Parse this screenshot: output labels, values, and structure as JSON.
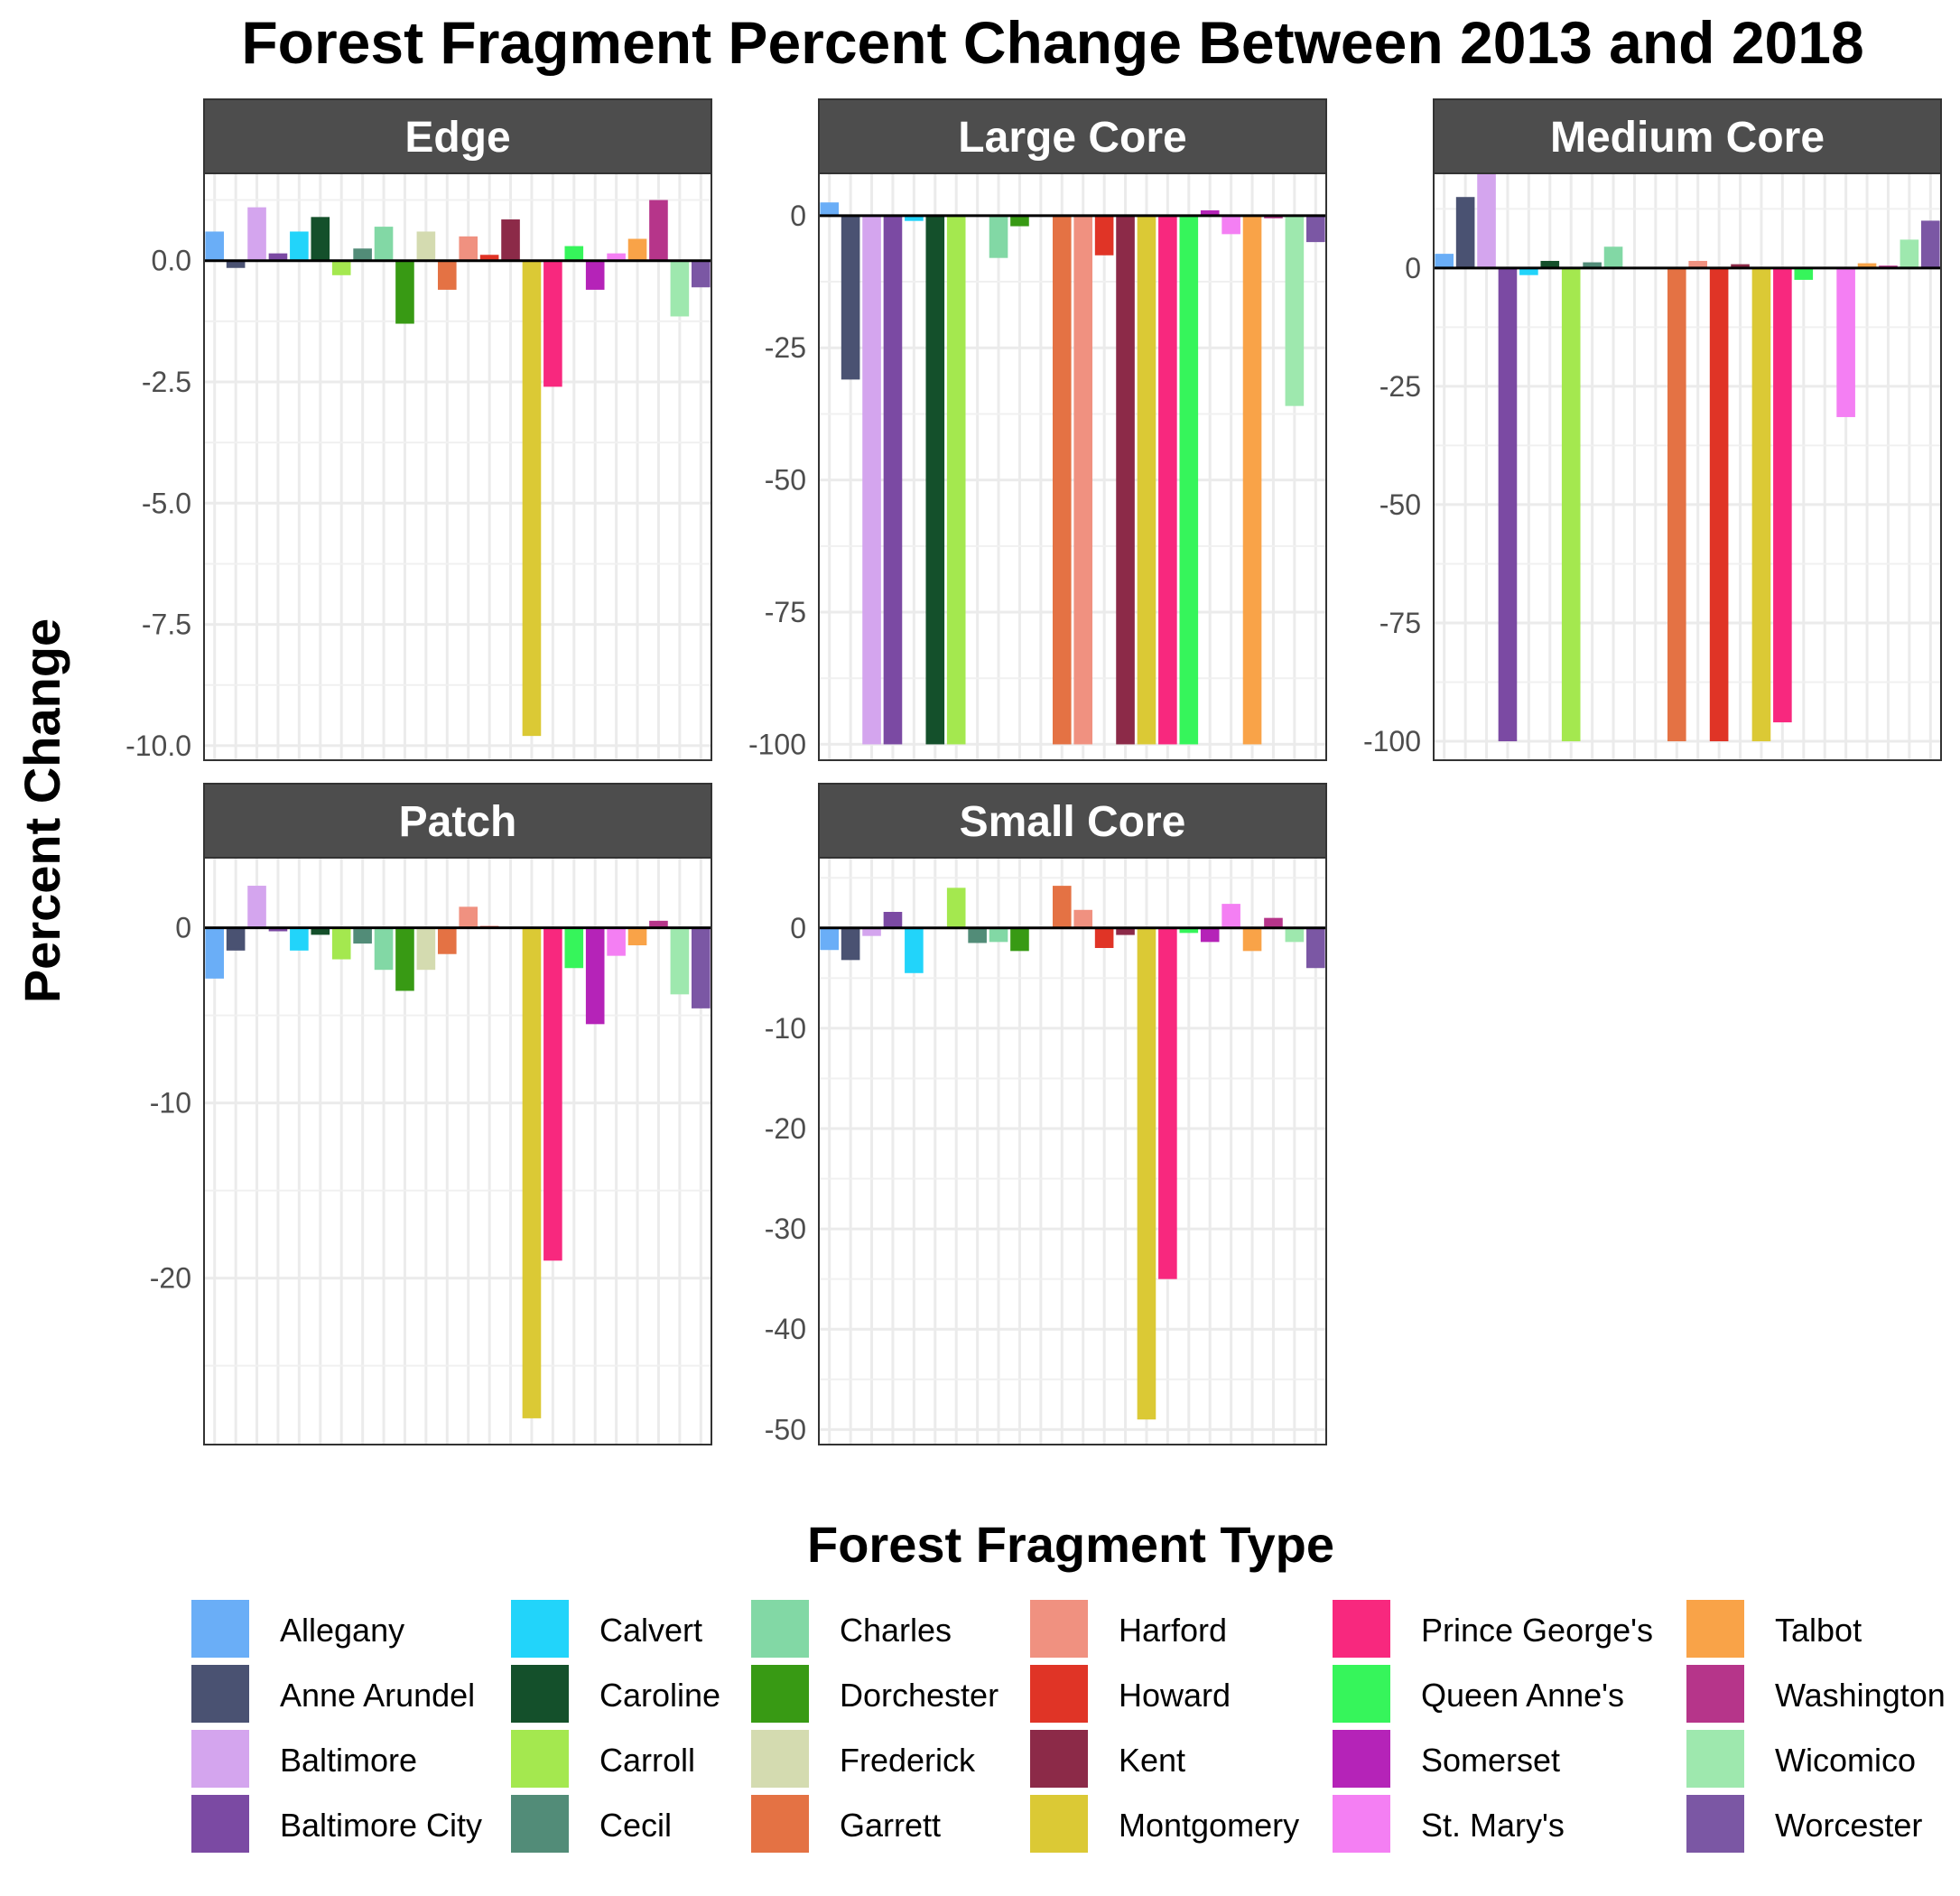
{
  "chart_data": {
    "type": "bar",
    "title": "Forest Fragment Percent Change Between 2013 and 2018",
    "ylabel": "Percent Change",
    "legend_title": "Forest Fragment Type",
    "legend_position": "bottom",
    "grid": true,
    "categories": [
      "Allegany",
      "Anne Arundel",
      "Baltimore",
      "Baltimore City",
      "Calvert",
      "Caroline",
      "Carroll",
      "Cecil",
      "Charles",
      "Dorchester",
      "Frederick",
      "Garrett",
      "Harford",
      "Howard",
      "Kent",
      "Montgomery",
      "Prince George's",
      "Queen Anne's",
      "Somerset",
      "St. Mary's",
      "Talbot",
      "Washington",
      "Wicomico",
      "Worcester"
    ],
    "colors": [
      "#6aaef7",
      "#4a5272",
      "#d4a5ee",
      "#7b4aa3",
      "#22d4fa",
      "#14502b",
      "#a4e84f",
      "#528c78",
      "#82d8a5",
      "#389a14",
      "#d4dbb0",
      "#e47244",
      "#f09180",
      "#e03426",
      "#8c2a48",
      "#dbc935",
      "#f8287e",
      "#36f55b",
      "#b523b8",
      "#f47ff3",
      "#f9a348",
      "#b6358a",
      "#9ee8ae",
      "#7b57a4"
    ],
    "panels": [
      {
        "name": "Edge",
        "ylim": [
          -10.3,
          1.8
        ],
        "ticks": [
          0,
          -2.5,
          -5,
          -7.5,
          -10
        ],
        "tick_labels": [
          "0.0",
          "-2.5",
          "-5.0",
          "-7.5",
          "-10.0"
        ],
        "values": [
          0.6,
          -0.15,
          1.1,
          0.15,
          0.6,
          0.9,
          -0.3,
          0.25,
          0.7,
          -1.3,
          0.6,
          -0.6,
          0.5,
          0.12,
          0.85,
          -9.8,
          -2.6,
          0.3,
          -0.6,
          0.15,
          0.45,
          1.25,
          -1.15,
          -0.55
        ]
      },
      {
        "name": "Large Core",
        "ylim": [
          -103,
          8
        ],
        "ticks": [
          0,
          -25,
          -50,
          -75,
          -100
        ],
        "tick_labels": [
          "0",
          "-25",
          "-50",
          "-75",
          "-100"
        ],
        "values": [
          2.5,
          -31,
          -100,
          -100,
          -1,
          -100,
          -100,
          0,
          -8,
          -2,
          0,
          -100,
          -100,
          -7.5,
          -100,
          -100,
          -100,
          -100,
          1,
          -3.5,
          -100,
          -0.5,
          -36,
          -5
        ]
      },
      {
        "name": "Medium Core",
        "ylim": [
          -104,
          20
        ],
        "ticks": [
          0,
          -25,
          -50,
          -75,
          -100
        ],
        "tick_labels": [
          "0",
          "-25",
          "-50",
          "-75",
          "-100"
        ],
        "values": [
          3,
          15,
          20,
          -100,
          -1.5,
          1.5,
          -100,
          1.2,
          4.5,
          0,
          0,
          -100,
          1.5,
          -100,
          0.8,
          -100,
          -96,
          -2.5,
          0,
          -31.5,
          1,
          0.5,
          6,
          10
        ]
      },
      {
        "name": "Patch",
        "ylim": [
          -29.5,
          4
        ],
        "ticks": [
          0,
          -10,
          -20
        ],
        "tick_labels": [
          "0",
          "-10",
          "-20"
        ],
        "values": [
          -2.9,
          -1.3,
          2.4,
          -0.2,
          -1.3,
          -0.4,
          -1.8,
          -0.9,
          -2.4,
          -3.6,
          -2.4,
          -1.5,
          1.2,
          0.1,
          0,
          -28,
          -19,
          -2.3,
          -5.5,
          -1.6,
          -1,
          0.4,
          -3.8,
          -4.6
        ]
      },
      {
        "name": "Small Core",
        "ylim": [
          -51.5,
          7
        ],
        "ticks": [
          0,
          -10,
          -20,
          -30,
          -40,
          -50
        ],
        "tick_labels": [
          "0",
          "-10",
          "-20",
          "-30",
          "-40",
          "-50"
        ],
        "values": [
          -2.2,
          -3.2,
          -0.8,
          1.6,
          -4.5,
          0,
          4,
          -1.5,
          -1.4,
          -2.3,
          0,
          4.2,
          1.8,
          -2,
          -0.7,
          -49,
          -35,
          -0.5,
          -1.4,
          2.4,
          -2.3,
          1,
          -1.4,
          -4
        ]
      }
    ]
  }
}
